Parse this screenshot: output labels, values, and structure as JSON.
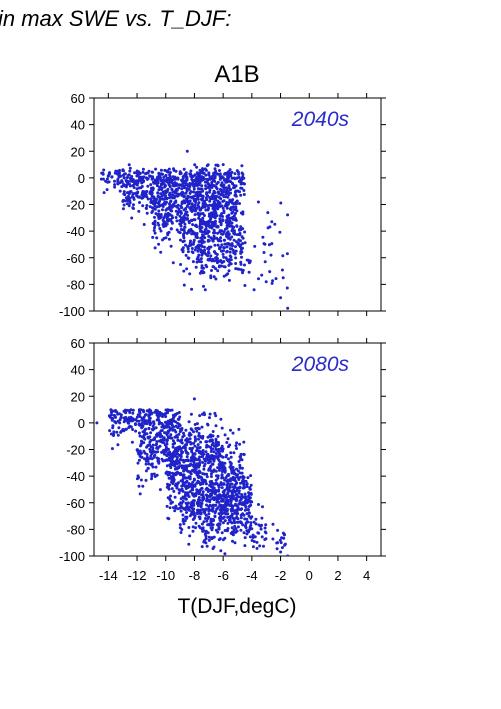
{
  "page_title": "in max SWE vs. T_DJF:",
  "chart_data": {
    "type": "scatter",
    "title": "A1B",
    "xlabel": "T(DJF,degC)",
    "ylabel": "",
    "xlim": [
      -15,
      5
    ],
    "ylim": [
      -100,
      60
    ],
    "x_ticks": [
      -14,
      -12,
      -10,
      -8,
      -6,
      -4,
      -2,
      0,
      2,
      4
    ],
    "y_ticks": [
      -100,
      -80,
      -60,
      -40,
      -20,
      0,
      20,
      40,
      60
    ],
    "grid": false,
    "point_color": "#1f23c8",
    "label_color": "#2b2bc8",
    "panels": [
      {
        "label": "2040s",
        "clusters": [
          {
            "x_range": [
              -14.5,
              -4.5
            ],
            "y_mean": 0,
            "y_spread": 4,
            "n": 320
          },
          {
            "x_range": [
              -13,
              -4.5
            ],
            "y_mean": -12,
            "y_spread": 8,
            "n": 420
          },
          {
            "x_range": [
              -11,
              -5
            ],
            "y_mean": -28,
            "y_spread": 12,
            "n": 380
          },
          {
            "x_range": [
              -9,
              -4.5
            ],
            "y_mean": -45,
            "y_spread": 14,
            "n": 260
          },
          {
            "x_range": [
              -8,
              -4
            ],
            "y_mean": -62,
            "y_spread": 8,
            "n": 90
          },
          {
            "x_range": [
              -4,
              -1.5
            ],
            "y_mean": -55,
            "y_spread": 22,
            "n": 30
          }
        ],
        "outliers": [
          {
            "x": -8.5,
            "y": 20
          },
          {
            "x": -1.5,
            "y": -98
          },
          {
            "x": -2,
            "y": -90
          },
          {
            "x": -3,
            "y": -78
          },
          {
            "x": -6,
            "y": 10
          }
        ]
      },
      {
        "label": "2080s",
        "clusters": [
          {
            "x_range": [
              -14,
              -9
            ],
            "y_mean": 2,
            "y_spread": 8,
            "n": 220
          },
          {
            "x_range": [
              -12,
              -6
            ],
            "y_mean": -20,
            "y_spread": 14,
            "n": 420
          },
          {
            "x_range": [
              -10,
              -4.5
            ],
            "y_mean": -40,
            "y_spread": 14,
            "n": 460
          },
          {
            "x_range": [
              -9,
              -4
            ],
            "y_mean": -60,
            "y_spread": 12,
            "n": 420
          },
          {
            "x_range": [
              -7.5,
              -3
            ],
            "y_mean": -78,
            "y_spread": 8,
            "n": 120
          },
          {
            "x_range": [
              -4,
              -1.5
            ],
            "y_mean": -88,
            "y_spread": 8,
            "n": 25
          }
        ],
        "outliers": [
          {
            "x": -14.8,
            "y": 0
          },
          {
            "x": -8,
            "y": 18
          },
          {
            "x": -1.5,
            "y": -100
          },
          {
            "x": -2,
            "y": -97
          }
        ]
      }
    ]
  }
}
